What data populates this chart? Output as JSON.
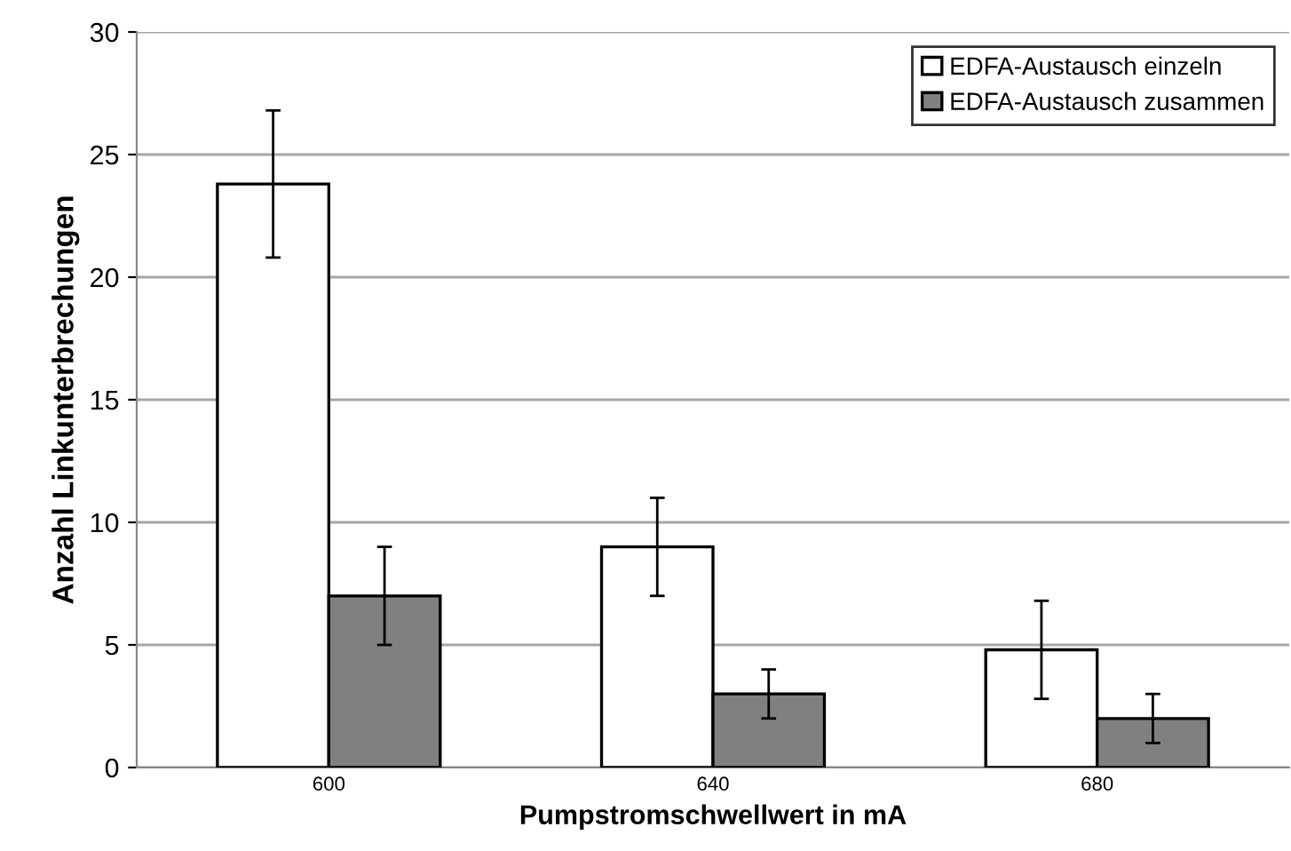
{
  "chart_data": {
    "type": "bar",
    "xlabel": "Pumpstromschwellwert in mA",
    "ylabel": "Anzahl Linkunterbrechungen",
    "categories": [
      "600",
      "640",
      "680"
    ],
    "series": [
      {
        "name": "EDFA-Austausch einzeln",
        "color": "#ffffff",
        "values": [
          23.8,
          9,
          4.8
        ],
        "errors": [
          3,
          2,
          2
        ]
      },
      {
        "name": "EDFA-Austausch zusammen",
        "color": "#808080",
        "values": [
          7,
          3,
          2
        ],
        "errors": [
          2,
          1,
          1
        ]
      }
    ],
    "ylim": [
      0,
      30
    ],
    "yticks": [
      0,
      5,
      10,
      15,
      20,
      25,
      30
    ],
    "grid": "y",
    "legend": "top right"
  }
}
